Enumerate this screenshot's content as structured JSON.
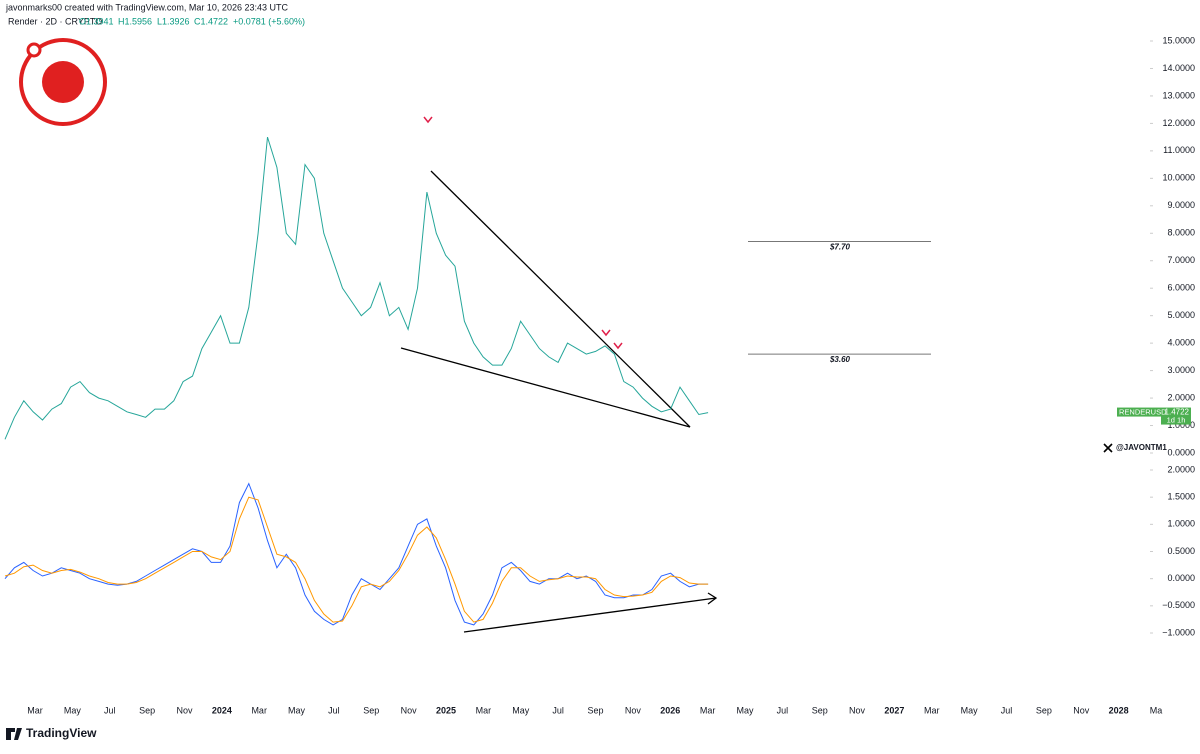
{
  "header": {
    "credit": "javonmarks00 created with TradingView.com, Mar 10, 2026 23:43 UTC",
    "symbol": "Render · 2D · CRYPTO",
    "open": "O1.3941",
    "high": "H1.5956",
    "low": "L1.3926",
    "close": "C1.4722",
    "change": "+0.0781 (+5.60%)"
  },
  "watermark": "@JAVONTM1",
  "footer": "TradingView",
  "chart_data": [
    {
      "type": "line",
      "x_labels": [
        "Mar",
        "May",
        "Jul",
        "Sep",
        "Nov",
        "2024",
        "Mar",
        "May",
        "Jul",
        "Sep",
        "Nov",
        "2025",
        "Mar",
        "May",
        "Jul",
        "Sep",
        "Nov",
        "2026",
        "Mar",
        "May",
        "Jul",
        "Sep",
        "Nov",
        "2027",
        "Mar",
        "May",
        "Jul",
        "Sep",
        "Nov",
        "2028",
        "Ma"
      ],
      "series": [
        {
          "name": "RENDERUSD",
          "color": "#26a69a",
          "values": [
            0.5,
            1.3,
            1.9,
            1.5,
            1.2,
            1.6,
            1.8,
            2.4,
            2.6,
            2.2,
            2.0,
            1.9,
            1.7,
            1.5,
            1.4,
            1.3,
            1.6,
            1.6,
            1.9,
            2.6,
            2.8,
            3.8,
            4.4,
            5.0,
            4.0,
            4.0,
            5.3,
            8.0,
            11.5,
            10.4,
            8.0,
            7.6,
            10.5,
            10.0,
            8.0,
            7.0,
            6.0,
            5.5,
            5.0,
            5.3,
            6.2,
            5.0,
            5.3,
            4.5,
            6.0,
            9.5,
            8.0,
            7.2,
            6.8,
            4.8,
            4.0,
            3.5,
            3.2,
            3.2,
            3.8,
            4.8,
            4.3,
            3.8,
            3.5,
            3.3,
            4.0,
            3.8,
            3.6,
            3.7,
            3.9,
            3.6,
            2.6,
            2.4,
            2.0,
            1.7,
            1.5,
            1.6,
            2.4,
            1.9,
            1.4,
            1.47
          ]
        }
      ],
      "ylim": [
        0,
        15
      ],
      "yticks": [
        {
          "value": 0,
          "label": "0.0000"
        },
        {
          "value": 1,
          "label": "1.0000"
        },
        {
          "value": 2,
          "label": "2.0000"
        },
        {
          "value": 3,
          "label": "3.0000"
        },
        {
          "value": 4,
          "label": "4.0000"
        },
        {
          "value": 5,
          "label": "5.0000"
        },
        {
          "value": 6,
          "label": "6.0000"
        },
        {
          "value": 7,
          "label": "7.0000"
        },
        {
          "value": 8,
          "label": "8.0000"
        },
        {
          "value": 9,
          "label": "9.0000"
        },
        {
          "value": 10,
          "label": "10.0000"
        },
        {
          "value": 11,
          "label": "11.0000"
        },
        {
          "value": 12,
          "label": "12.0000"
        },
        {
          "value": 13,
          "label": "13.0000"
        },
        {
          "value": 14,
          "label": "14.0000"
        },
        {
          "value": 15,
          "label": "15.0000"
        }
      ],
      "level_lines": [
        {
          "value": 7.7,
          "label": "$7.70"
        },
        {
          "value": 3.6,
          "label": "$3.60"
        }
      ],
      "last_price": {
        "symbol": "RENDERUSD",
        "value": 1.4722,
        "countdown": "1d 1h",
        "color": "#4caf50"
      }
    },
    {
      "type": "line",
      "series": [
        {
          "name": "MACD",
          "color": "#2962ff",
          "values": [
            0.0,
            0.2,
            0.3,
            0.15,
            0.05,
            0.1,
            0.2,
            0.15,
            0.1,
            0.0,
            -0.05,
            -0.1,
            -0.12,
            -0.1,
            -0.05,
            0.05,
            0.15,
            0.25,
            0.35,
            0.45,
            0.55,
            0.5,
            0.3,
            0.3,
            0.6,
            1.4,
            1.75,
            1.3,
            0.7,
            0.2,
            0.45,
            0.2,
            -0.3,
            -0.6,
            -0.75,
            -0.85,
            -0.75,
            -0.3,
            0.0,
            -0.1,
            -0.2,
            0.0,
            0.2,
            0.6,
            1.0,
            1.1,
            0.6,
            0.2,
            -0.4,
            -0.8,
            -0.85,
            -0.65,
            -0.3,
            0.2,
            0.3,
            0.15,
            -0.05,
            -0.1,
            0.0,
            0.0,
            0.1,
            0.0,
            0.05,
            -0.05,
            -0.3,
            -0.35,
            -0.35,
            -0.3,
            -0.3,
            -0.2,
            0.05,
            0.1,
            -0.05,
            -0.15,
            -0.1,
            -0.1
          ]
        },
        {
          "name": "Signal",
          "color": "#ff9800",
          "values": [
            0.05,
            0.1,
            0.22,
            0.25,
            0.15,
            0.1,
            0.15,
            0.17,
            0.12,
            0.05,
            0.0,
            -0.07,
            -0.1,
            -0.1,
            -0.07,
            0.0,
            0.1,
            0.2,
            0.3,
            0.4,
            0.5,
            0.5,
            0.4,
            0.35,
            0.5,
            1.1,
            1.5,
            1.45,
            0.95,
            0.45,
            0.4,
            0.3,
            0.0,
            -0.4,
            -0.65,
            -0.8,
            -0.78,
            -0.5,
            -0.15,
            -0.1,
            -0.15,
            -0.05,
            0.15,
            0.45,
            0.8,
            0.95,
            0.75,
            0.35,
            -0.1,
            -0.6,
            -0.8,
            -0.75,
            -0.45,
            -0.05,
            0.2,
            0.2,
            0.05,
            -0.05,
            -0.02,
            0.0,
            0.05,
            0.03,
            0.03,
            0.0,
            -0.2,
            -0.3,
            -0.33,
            -0.32,
            -0.3,
            -0.25,
            -0.05,
            0.05,
            0.02,
            -0.08,
            -0.1,
            -0.1
          ]
        }
      ],
      "ylim": [
        -1,
        2
      ],
      "yticks": [
        {
          "value": -1,
          "label": "−1.0000"
        },
        {
          "value": -0.5,
          "label": "−0.5000"
        },
        {
          "value": 0,
          "label": "0.0000"
        },
        {
          "value": 0.5,
          "label": "0.5000"
        },
        {
          "value": 1,
          "label": "1.0000"
        },
        {
          "value": 1.5,
          "label": "1.5000"
        },
        {
          "value": 2,
          "label": "2.0000"
        }
      ]
    }
  ]
}
